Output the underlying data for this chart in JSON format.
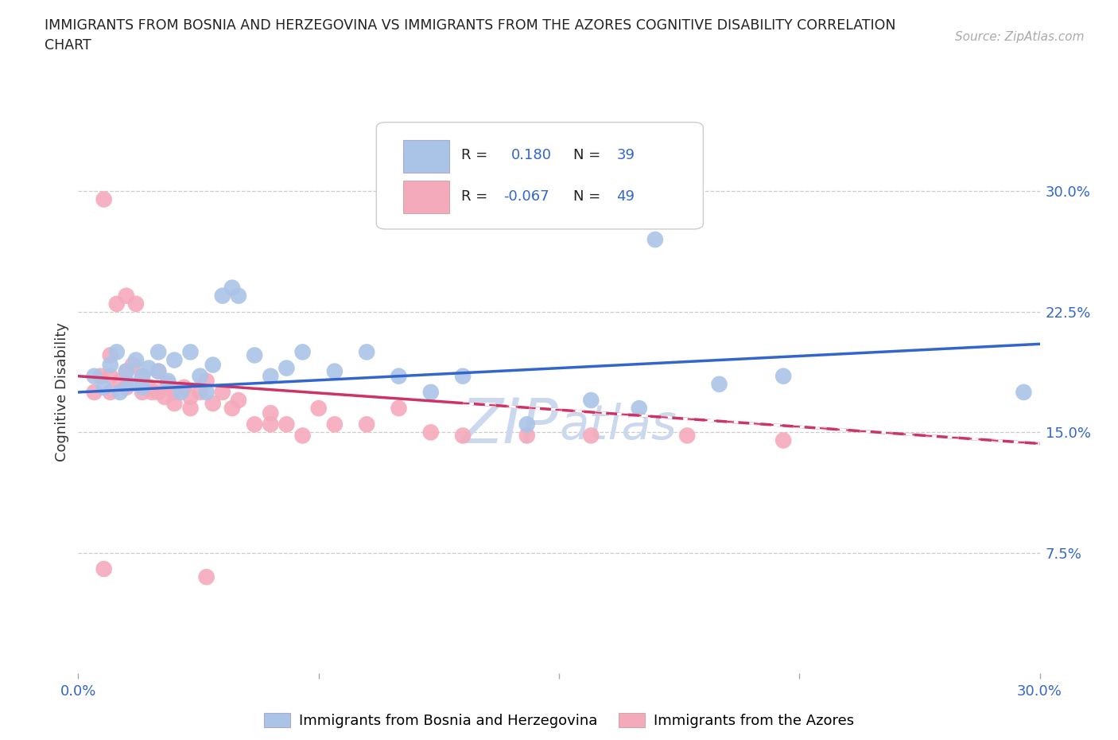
{
  "title_line1": "IMMIGRANTS FROM BOSNIA AND HERZEGOVINA VS IMMIGRANTS FROM THE AZORES COGNITIVE DISABILITY CORRELATION",
  "title_line2": "CHART",
  "source": "Source: ZipAtlas.com",
  "ylabel": "Cognitive Disability",
  "xlim": [
    0.0,
    0.3
  ],
  "ylim": [
    0.0,
    0.35
  ],
  "blue_color": "#aac4e8",
  "pink_color": "#f5aabc",
  "blue_line_color": "#3366cc",
  "pink_line_color": "#cc3366",
  "blue_r": 0.18,
  "blue_n": 39,
  "pink_r": -0.067,
  "pink_n": 49,
  "grid_color": "#cccccc",
  "watermark_color": "#ccd8ee",
  "blue_scatter_x": [
    0.005,
    0.008,
    0.01,
    0.012,
    0.013,
    0.015,
    0.016,
    0.018,
    0.02,
    0.02,
    0.022,
    0.025,
    0.025,
    0.028,
    0.03,
    0.032,
    0.035,
    0.038,
    0.04,
    0.042,
    0.045,
    0.048,
    0.05,
    0.055,
    0.06,
    0.065,
    0.07,
    0.08,
    0.09,
    0.1,
    0.11,
    0.12,
    0.14,
    0.16,
    0.175,
    0.18,
    0.2,
    0.22,
    0.295
  ],
  "blue_scatter_y": [
    0.185,
    0.178,
    0.192,
    0.2,
    0.175,
    0.188,
    0.18,
    0.195,
    0.185,
    0.178,
    0.19,
    0.2,
    0.188,
    0.182,
    0.195,
    0.175,
    0.2,
    0.185,
    0.175,
    0.192,
    0.235,
    0.24,
    0.235,
    0.198,
    0.185,
    0.19,
    0.2,
    0.188,
    0.2,
    0.185,
    0.175,
    0.185,
    0.155,
    0.17,
    0.165,
    0.27,
    0.18,
    0.185,
    0.175
  ],
  "pink_scatter_x": [
    0.005,
    0.007,
    0.008,
    0.01,
    0.01,
    0.012,
    0.013,
    0.015,
    0.015,
    0.017,
    0.018,
    0.02,
    0.02,
    0.022,
    0.023,
    0.025,
    0.025,
    0.027,
    0.028,
    0.03,
    0.03,
    0.033,
    0.035,
    0.035,
    0.038,
    0.04,
    0.042,
    0.045,
    0.048,
    0.05,
    0.055,
    0.06,
    0.065,
    0.07,
    0.075,
    0.08,
    0.09,
    0.1,
    0.11,
    0.12,
    0.14,
    0.16,
    0.19,
    0.22,
    0.015,
    0.01,
    0.008,
    0.06,
    0.04
  ],
  "pink_scatter_y": [
    0.175,
    0.185,
    0.295,
    0.175,
    0.185,
    0.23,
    0.182,
    0.178,
    0.188,
    0.192,
    0.23,
    0.175,
    0.185,
    0.178,
    0.175,
    0.188,
    0.175,
    0.172,
    0.18,
    0.175,
    0.168,
    0.178,
    0.172,
    0.165,
    0.175,
    0.182,
    0.168,
    0.175,
    0.165,
    0.17,
    0.155,
    0.162,
    0.155,
    0.148,
    0.165,
    0.155,
    0.155,
    0.165,
    0.15,
    0.148,
    0.148,
    0.148,
    0.148,
    0.145,
    0.235,
    0.198,
    0.065,
    0.155,
    0.06
  ],
  "blue_line_x0": 0.0,
  "blue_line_y0": 0.175,
  "blue_line_x1": 0.3,
  "blue_line_y1": 0.205,
  "pink_line_x0": 0.0,
  "pink_line_y0": 0.185,
  "pink_line_x1": 0.3,
  "pink_line_y1": 0.143
}
